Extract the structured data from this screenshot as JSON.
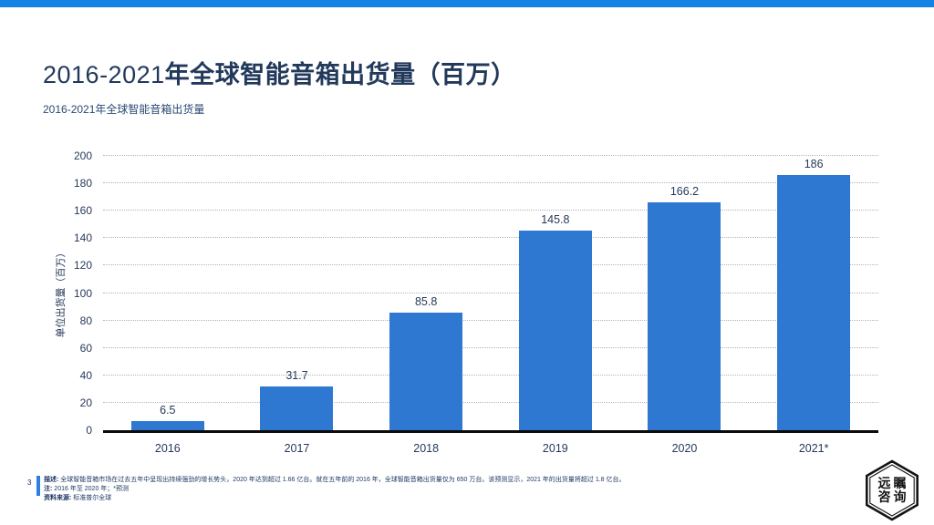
{
  "header": {
    "accent_bar_color": "#1583E6"
  },
  "title": {
    "prefix": "2016-2021",
    "main": "年全球智能音箱出货量（百万）"
  },
  "subtitle": "2016-2021年全球智能音箱出货量",
  "chart_data": {
    "type": "bar",
    "title": "2016-2021年全球智能音箱出货量",
    "categories": [
      "2016",
      "2017",
      "2018",
      "2019",
      "2020",
      "2021*"
    ],
    "values": [
      6.5,
      31.7,
      85.8,
      145.8,
      166.2,
      186
    ],
    "value_labels": [
      "6.5",
      "31.7",
      "85.8",
      "145.8",
      "166.2",
      "186"
    ],
    "xlabel": "",
    "ylabel": "单位出货量（百万）",
    "ylim": [
      0,
      200
    ],
    "ytick_step": 20,
    "grid": "horizontal-dotted",
    "legend": "none",
    "bar_color": "#2E78D2"
  },
  "footer": {
    "page_number": "3",
    "note_label": "描述:",
    "note_text": "全球智能音箱市场在过去五年中呈现出持续强劲的增长势头，2020 年达到超过 1.66 亿台。就在五年前的 2016 年，全球智能音箱出货量仅为 650 万台。该预测显示，2021 年的出货量将超过 1.8 亿台。",
    "remark_label": "注:",
    "remark_text": "2016 年至 2020 年；*预测",
    "source_label": "资料来源:",
    "source_text": "标准普尔全球"
  },
  "logo": {
    "line1": "远瞩",
    "line2": "咨询"
  },
  "colors": {
    "accent_bar": "#1583E6",
    "bar": "#2E78D2",
    "title_text": "#22395C",
    "tick_text": "#26395A",
    "grid_line": "#B3B3B3",
    "axis_line": "#0B0B0B",
    "footer_text": "#1F3864",
    "footer_accent": "#2E7FE0"
  }
}
